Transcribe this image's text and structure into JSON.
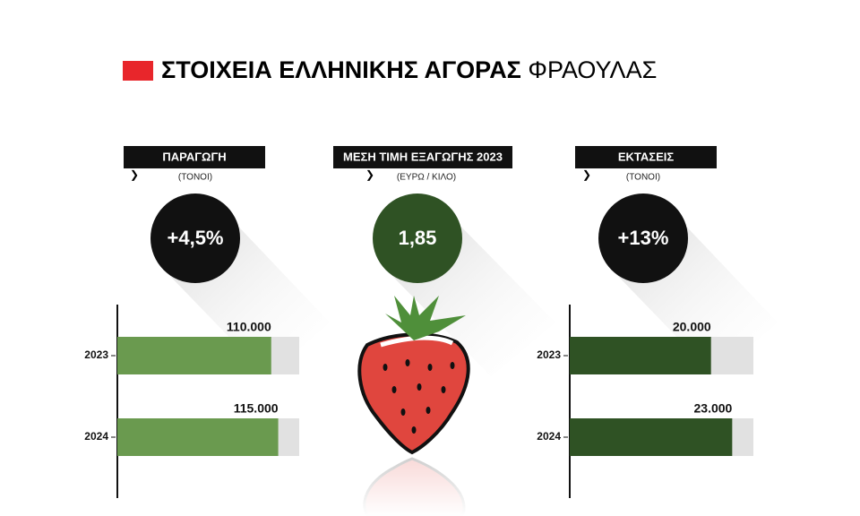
{
  "title_bold": "ΣΤΟΙΧΕΙΑ ΕΛΛΗΝΙΚΗΣ ΑΓΟΡΑΣ",
  "title_light": "ΦΡΑΟΥΛΑΣ",
  "price": {
    "title": "ΜΕΣΗ ΤΙΜΗ ΕΞΑΓΩΓΗΣ 2023",
    "subtitle": "(ΕΥΡΩ / ΚΙΛΟ)",
    "badge": "1,85"
  },
  "chart_data": [
    {
      "type": "bar",
      "title": "ΠΑΡΑΓΩΓΗ",
      "subtitle": "(ΤΟΝΟΙ)",
      "annotation": "+4,5%",
      "categories": [
        "2023",
        "2024"
      ],
      "values": [
        110000,
        115000
      ],
      "value_labels": [
        "110.000",
        "115.000"
      ],
      "xlim": [
        0,
        130000
      ],
      "color": "#6a9a4f"
    },
    {
      "type": "bar",
      "title": "ΕΚΤΑΣΕΙΣ",
      "subtitle": "(ΤΟΝΟΙ)",
      "annotation": "+13%",
      "categories": [
        "2023",
        "2024"
      ],
      "values": [
        20000,
        23000
      ],
      "value_labels": [
        "20.000",
        "23.000"
      ],
      "xlim": [
        0,
        26000
      ],
      "color": "#2f5224"
    }
  ]
}
